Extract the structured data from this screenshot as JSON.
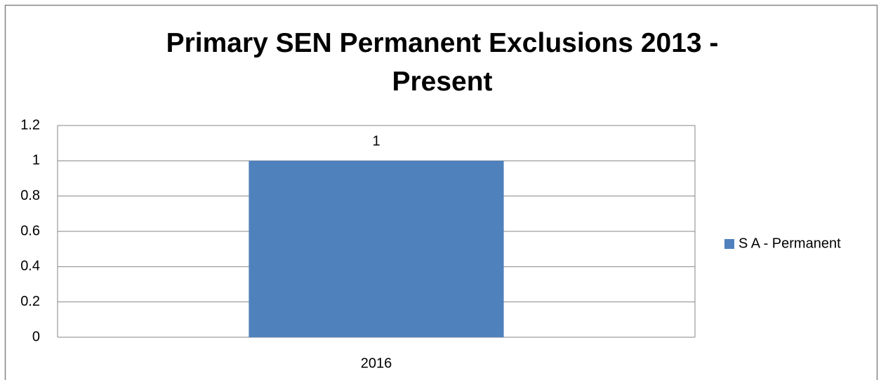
{
  "chart_data": {
    "type": "bar",
    "title": "Primary SEN Permanent Exclusions 2013 - Present",
    "categories": [
      "2016"
    ],
    "series": [
      {
        "name": "S A - Permanent",
        "color": "#4f81bd",
        "values": [
          1
        ]
      }
    ],
    "ylim": [
      0,
      1.2
    ],
    "yticks": [
      0,
      0.2,
      0.4,
      0.6,
      0.8,
      1,
      1.2
    ],
    "grid": true,
    "data_labels": true,
    "legend": "right"
  }
}
